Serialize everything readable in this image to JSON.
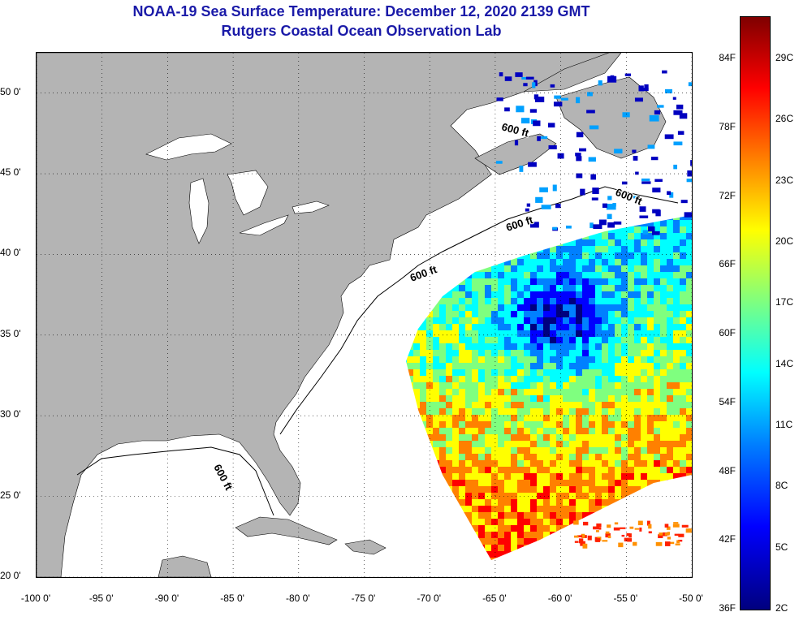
{
  "title": {
    "line1": "NOAA-19 Sea Surface Temperature:  December 12, 2020 2139 GMT",
    "line2": "Rutgers Coastal Ocean Observation Lab"
  },
  "map": {
    "lon_range": [
      -100,
      -50
    ],
    "lat_range": [
      20,
      52.5
    ],
    "land_color": "#b4b4b4",
    "water_color": "#ffffff",
    "latitude_labels": [
      {
        "lat": 50,
        "text": "50 0'"
      },
      {
        "lat": 45,
        "text": "45 0'"
      },
      {
        "lat": 40,
        "text": "40 0'"
      },
      {
        "lat": 35,
        "text": "35 0'"
      },
      {
        "lat": 30,
        "text": "30 0'"
      },
      {
        "lat": 25,
        "text": "25 0'"
      },
      {
        "lat": 20,
        "text": "20 0'"
      }
    ],
    "longitude_labels": [
      {
        "lon": -100,
        "text": "-100 0'"
      },
      {
        "lon": -95,
        "text": "-95 0'"
      },
      {
        "lon": -90,
        "text": "-90 0'"
      },
      {
        "lon": -85,
        "text": "-85 0'"
      },
      {
        "lon": -80,
        "text": "-80 0'"
      },
      {
        "lon": -75,
        "text": "-75 0'"
      },
      {
        "lon": -70,
        "text": "-70 0'"
      },
      {
        "lon": -65,
        "text": "-65 0'"
      },
      {
        "lon": -60,
        "text": "-60 0'"
      },
      {
        "lon": -55,
        "text": "-55 0'"
      },
      {
        "lon": -50,
        "text": "-50 0'"
      }
    ],
    "contour_labels": [
      "600 ft",
      "600 ft",
      "600 ft",
      "600 ft",
      "600 ft"
    ]
  },
  "colorbar": {
    "fahrenheit_labels": [
      "84F",
      "78F",
      "72F",
      "66F",
      "60F",
      "54F",
      "48F",
      "42F",
      "36F"
    ],
    "celsius_labels": [
      "29C",
      "26C",
      "23C",
      "20C",
      "17C",
      "14C",
      "11C",
      "8C",
      "5C",
      "2C"
    ],
    "colors": [
      "#00007f",
      "#0000ff",
      "#0080ff",
      "#00ffff",
      "#7fff7f",
      "#ffff00",
      "#ff8000",
      "#ff0000",
      "#7f0000"
    ]
  }
}
